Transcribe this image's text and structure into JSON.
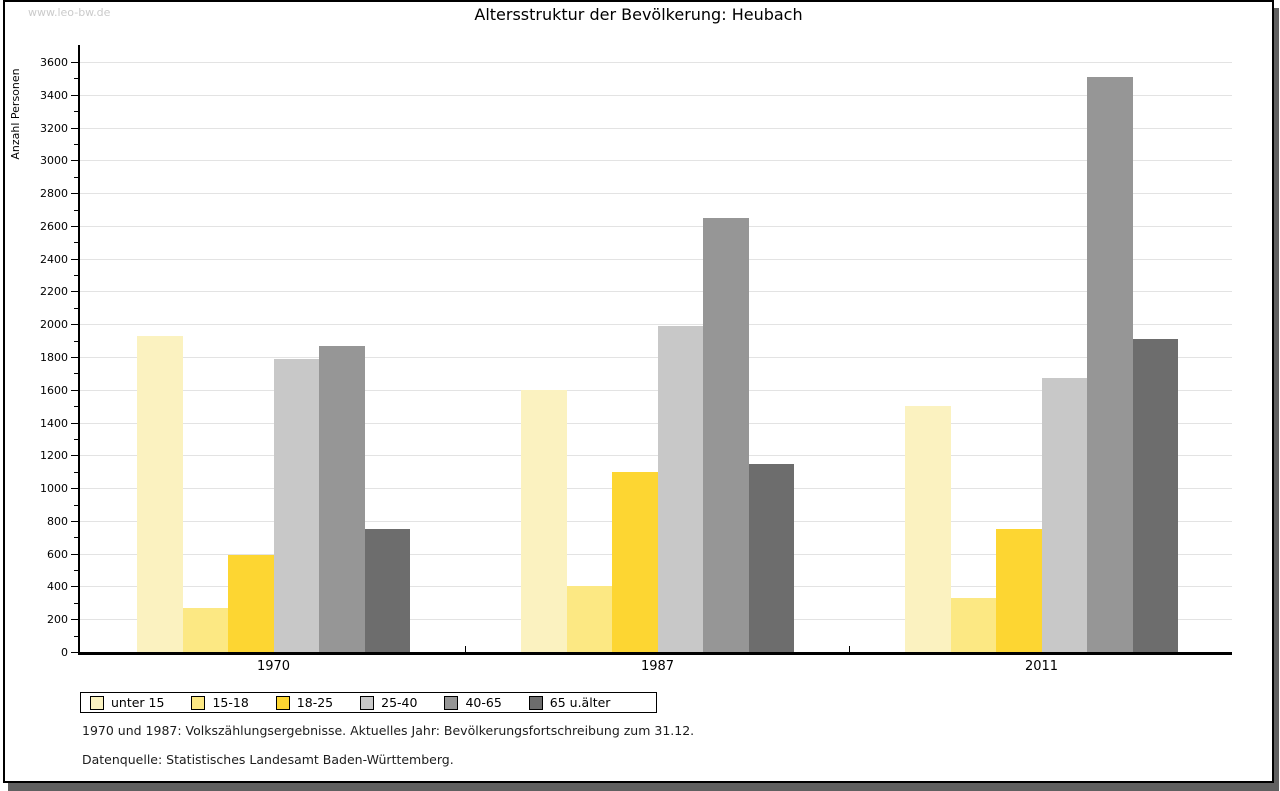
{
  "window": {
    "watermark": "www.leo-bw.de"
  },
  "chart_data": {
    "type": "bar",
    "title": "Altersstruktur der Bevölkerung: Heubach",
    "ylabel": "Anzahl Personen",
    "xlabel": "",
    "categories": [
      "1970",
      "1987",
      "2011"
    ],
    "series": [
      {
        "name": "unter 15",
        "color": "#FBF2C0",
        "values": [
          1930,
          1600,
          1500
        ]
      },
      {
        "name": "15-18",
        "color": "#FCE883",
        "values": [
          270,
          400,
          330
        ]
      },
      {
        "name": "18-25",
        "color": "#FDD632",
        "values": [
          590,
          1100,
          750
        ]
      },
      {
        "name": "25-40",
        "color": "#C8C8C8",
        "values": [
          1790,
          1990,
          1670
        ]
      },
      {
        "name": "40-65",
        "color": "#969696",
        "values": [
          1870,
          2650,
          3510
        ]
      },
      {
        "name": "65 u.älter",
        "color": "#6D6D6D",
        "values": [
          750,
          1150,
          1910
        ]
      }
    ],
    "ylim": [
      0,
      3600
    ],
    "ytick_step": 200,
    "ytick_minor_step": 100,
    "grid": true,
    "legend_position": "bottom",
    "grid_color": "#e3e3e3"
  },
  "footnotes": [
    "1970 und 1987: Volkszählungsergebnisse. Aktuelles Jahr: Bevölkerungsfortschreibung zum 31.12.",
    "Datenquelle: Statistisches Landesamt Baden-Württemberg."
  ]
}
